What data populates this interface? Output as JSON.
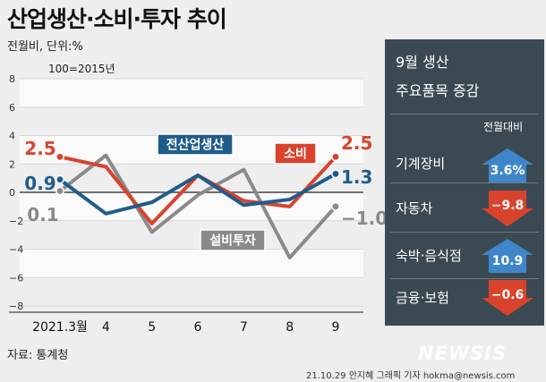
{
  "title": "산업생산·소비·투자 추이",
  "unit_label": "전월비, 단위:%",
  "base_note": "100=2015년",
  "source": "자료: 통계청",
  "credit": "21.10.29 안지혜 그래픽 기자 hokma@newsis.com",
  "watermark": "NEWSIS",
  "chart_data": {
    "type": "line",
    "categories": [
      "2021.3월",
      "4",
      "5",
      "6",
      "7",
      "8",
      "9"
    ],
    "y_ticks": [
      "8",
      "6",
      "4",
      "2",
      "0",
      "−2",
      "−4",
      "−6",
      "−8"
    ],
    "ylim": [
      -8,
      8
    ],
    "grid": true,
    "series": [
      {
        "name": "전산업생산",
        "values": [
          0.9,
          -1.5,
          -0.7,
          1.2,
          -0.9,
          -0.5,
          1.3
        ],
        "color": "#1f5c8c",
        "start_label": "0.9",
        "end_label": "1.3"
      },
      {
        "name": "소비",
        "values": [
          2.5,
          1.8,
          -2.2,
          1.2,
          -0.6,
          -1.0,
          2.5
        ],
        "color": "#d9432c",
        "start_label": "2.5",
        "end_label": "2.5"
      },
      {
        "name": "설비투자",
        "values": [
          0.1,
          2.6,
          -2.8,
          -0.2,
          1.6,
          -4.6,
          -1.0
        ],
        "color": "#8a8a8a",
        "start_label": "0.1",
        "end_label": "−1.0"
      }
    ]
  },
  "panel": {
    "title_line1": "9월 생산",
    "title_line2": "주요품목 증감",
    "column_header": "전월대비",
    "items": [
      {
        "label": "기계장비",
        "value": "3.6%",
        "value_num": 3.6,
        "direction": "up"
      },
      {
        "label": "자동차",
        "value": "−9.8",
        "value_num": -9.8,
        "direction": "down"
      },
      {
        "label": "숙박·음식점",
        "value": "10.9",
        "value_num": 10.9,
        "direction": "up"
      },
      {
        "label": "금융·보험",
        "value": "−0.6",
        "value_num": -0.6,
        "direction": "down"
      }
    ],
    "up_color": "#3e86c9",
    "down_color": "#d9432c"
  }
}
